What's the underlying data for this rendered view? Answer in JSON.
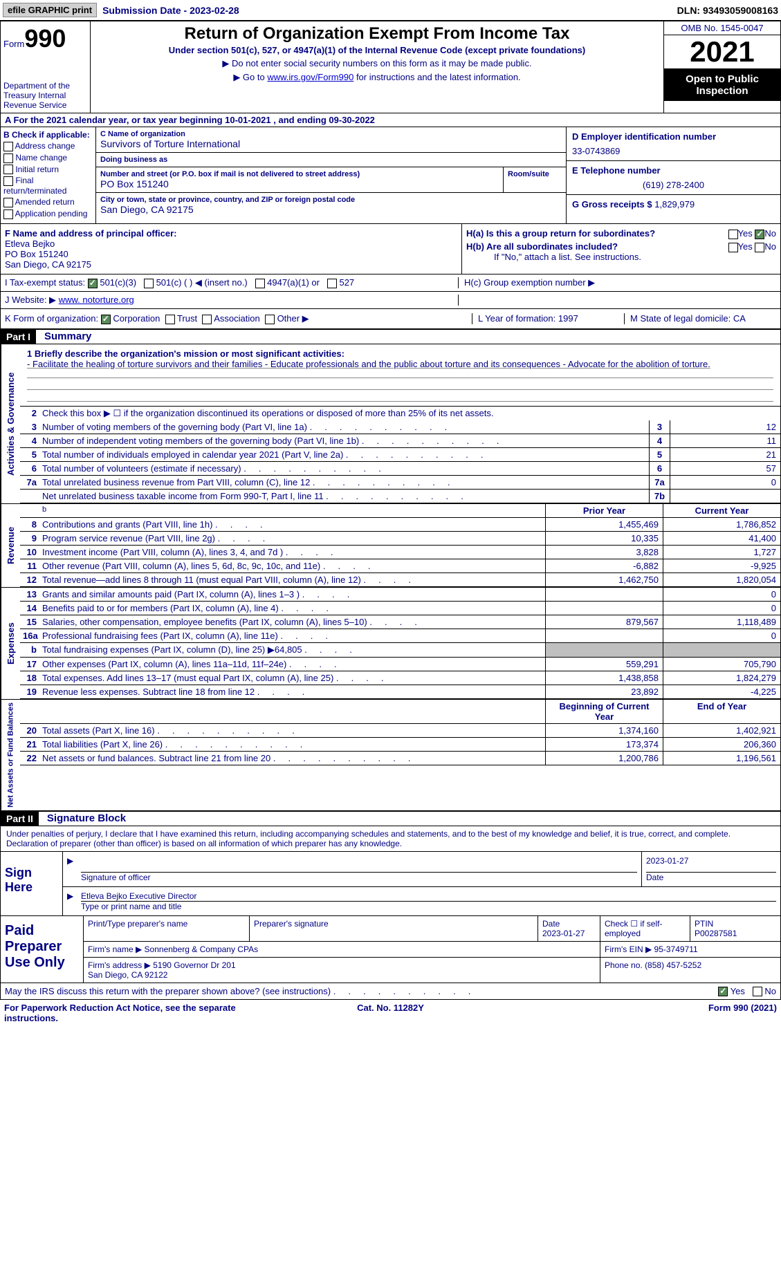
{
  "topbar": {
    "efile_btn": "efile GRAPHIC print",
    "submission_label": "Submission Date - 2023-02-28",
    "dln": "DLN: 93493059008163"
  },
  "header": {
    "form_label": "Form",
    "form_number": "990",
    "dept": "Department of the Treasury\nInternal Revenue Service",
    "title": "Return of Organization Exempt From Income Tax",
    "subtitle": "Under section 501(c), 527, or 4947(a)(1) of the Internal Revenue Code (except private foundations)",
    "note1": "▶ Do not enter social security numbers on this form as it may be made public.",
    "note2_pre": "▶ Go to ",
    "note2_link": "www.irs.gov/Form990",
    "note2_post": " for instructions and the latest information.",
    "omb": "OMB No. 1545-0047",
    "year": "2021",
    "open": "Open to Public Inspection"
  },
  "row_a": "A For the 2021 calendar year, or tax year beginning 10-01-2021    , and ending 09-30-2022",
  "section_b": {
    "header": "B Check if applicable:",
    "items": [
      "Address change",
      "Name change",
      "Initial return",
      "Final return/terminated",
      "Amended return",
      "Application pending"
    ]
  },
  "section_c": {
    "name_lbl": "C Name of organization",
    "name": "Survivors of Torture International",
    "dba_lbl": "Doing business as",
    "dba": "",
    "street_lbl": "Number and street (or P.O. box if mail is not delivered to street address)",
    "street": "PO Box 151240",
    "suite_lbl": "Room/suite",
    "suite": "",
    "city_lbl": "City or town, state or province, country, and ZIP or foreign postal code",
    "city": "San Diego, CA   92175"
  },
  "section_d": {
    "ein_lbl": "D Employer identification number",
    "ein": "33-0743869",
    "phone_lbl": "E Telephone number",
    "phone": "(619) 278-2400",
    "gross_lbl": "G Gross receipts $",
    "gross": "1,829,979"
  },
  "section_f": {
    "lbl": "F  Name and address of principal officer:",
    "name": "Etleva Bejko",
    "addr1": "PO Box 151240",
    "addr2": "San Diego, CA   92175"
  },
  "section_h": {
    "a_lbl": "H(a)  Is this a group return for subordinates?",
    "b_lbl": "H(b)  Are all subordinates included?",
    "b_note": "If \"No,\" attach a list. See instructions.",
    "c_lbl": "H(c)  Group exemption number ▶"
  },
  "status": {
    "lbl": "I   Tax-exempt status:",
    "opts": [
      "501(c)(3)",
      "501(c) (  ) ◀ (insert no.)",
      "4947(a)(1) or",
      "527"
    ]
  },
  "website": {
    "lbl": "J  Website: ▶",
    "val": "www. notorture.org"
  },
  "k": {
    "lbl": "K Form of organization:",
    "opts": [
      "Corporation",
      "Trust",
      "Association",
      "Other ▶"
    ]
  },
  "l": {
    "lbl": "L Year of formation:",
    "val": "1997"
  },
  "m": {
    "lbl": "M State of legal domicile:",
    "val": "CA"
  },
  "part1": {
    "header": "Part I",
    "title": "Summary",
    "mission_lbl": "1   Briefly describe the organization's mission or most significant activities:",
    "mission": "- Facilitate the healing of torture survivors and their families - Educate professionals and the public about torture and its consequences - Advocate for the abolition of torture.",
    "line2": "Check this box ▶ ☐  if the organization discontinued its operations or disposed of more than 25% of its net assets.",
    "activities": [
      {
        "n": "3",
        "d": "Number of voting members of the governing body (Part VI, line 1a)",
        "b": "3",
        "v": "12"
      },
      {
        "n": "4",
        "d": "Number of independent voting members of the governing body (Part VI, line 1b)",
        "b": "4",
        "v": "11"
      },
      {
        "n": "5",
        "d": "Total number of individuals employed in calendar year 2021 (Part V, line 2a)",
        "b": "5",
        "v": "21"
      },
      {
        "n": "6",
        "d": "Total number of volunteers (estimate if necessary)",
        "b": "6",
        "v": "57"
      },
      {
        "n": "7a",
        "d": "Total unrelated business revenue from Part VIII, column (C), line 12",
        "b": "7a",
        "v": "0"
      },
      {
        "n": "",
        "d": "Net unrelated business taxable income from Form 990-T, Part I, line 11",
        "b": "7b",
        "v": ""
      }
    ],
    "col_prior": "Prior Year",
    "col_current": "Current Year",
    "revenue": [
      {
        "n": "8",
        "d": "Contributions and grants (Part VIII, line 1h)",
        "p": "1,455,469",
        "c": "1,786,852"
      },
      {
        "n": "9",
        "d": "Program service revenue (Part VIII, line 2g)",
        "p": "10,335",
        "c": "41,400"
      },
      {
        "n": "10",
        "d": "Investment income (Part VIII, column (A), lines 3, 4, and 7d )",
        "p": "3,828",
        "c": "1,727"
      },
      {
        "n": "11",
        "d": "Other revenue (Part VIII, column (A), lines 5, 6d, 8c, 9c, 10c, and 11e)",
        "p": "-6,882",
        "c": "-9,925"
      },
      {
        "n": "12",
        "d": "Total revenue—add lines 8 through 11 (must equal Part VIII, column (A), line 12)",
        "p": "1,462,750",
        "c": "1,820,054"
      }
    ],
    "expenses": [
      {
        "n": "13",
        "d": "Grants and similar amounts paid (Part IX, column (A), lines 1–3 )",
        "p": "",
        "c": "0"
      },
      {
        "n": "14",
        "d": "Benefits paid to or for members (Part IX, column (A), line 4)",
        "p": "",
        "c": "0"
      },
      {
        "n": "15",
        "d": "Salaries, other compensation, employee benefits (Part IX, column (A), lines 5–10)",
        "p": "879,567",
        "c": "1,118,489"
      },
      {
        "n": "16a",
        "d": "Professional fundraising fees (Part IX, column (A), line 11e)",
        "p": "",
        "c": "0"
      },
      {
        "n": "b",
        "d": "Total fundraising expenses (Part IX, column (D), line 25) ▶64,805",
        "p": "shaded",
        "c": "shaded"
      },
      {
        "n": "17",
        "d": "Other expenses (Part IX, column (A), lines 11a–11d, 11f–24e)",
        "p": "559,291",
        "c": "705,790"
      },
      {
        "n": "18",
        "d": "Total expenses. Add lines 13–17 (must equal Part IX, column (A), line 25)",
        "p": "1,438,858",
        "c": "1,824,279"
      },
      {
        "n": "19",
        "d": "Revenue less expenses. Subtract line 18 from line 12",
        "p": "23,892",
        "c": "-4,225"
      }
    ],
    "col_begin": "Beginning of Current Year",
    "col_end": "End of Year",
    "netassets": [
      {
        "n": "20",
        "d": "Total assets (Part X, line 16)",
        "p": "1,374,160",
        "c": "1,402,921"
      },
      {
        "n": "21",
        "d": "Total liabilities (Part X, line 26)",
        "p": "173,374",
        "c": "206,360"
      },
      {
        "n": "22",
        "d": "Net assets or fund balances. Subtract line 21 from line 20",
        "p": "1,200,786",
        "c": "1,196,561"
      }
    ]
  },
  "part2": {
    "header": "Part II",
    "title": "Signature Block",
    "declaration": "Under penalties of perjury, I declare that I have examined this return, including accompanying schedules and statements, and to the best of my knowledge and belief, it is true, correct, and complete. Declaration of preparer (other than officer) is based on all information of which preparer has any knowledge.",
    "sign_here": "Sign Here",
    "sig_officer": "Signature of officer",
    "sig_date": "2023-01-27",
    "date_lbl": "Date",
    "officer_name": "Etleva Bejko  Executive Director",
    "type_name_lbl": "Type or print name and title",
    "paid_lbl": "Paid Preparer Use Only",
    "prep_name_lbl": "Print/Type preparer's name",
    "prep_sig_lbl": "Preparer's signature",
    "prep_date_lbl": "Date",
    "prep_date": "2023-01-27",
    "check_self": "Check ☐ if self-employed",
    "ptin_lbl": "PTIN",
    "ptin": "P00287581",
    "firm_name_lbl": "Firm's name     ▶",
    "firm_name": "Sonnenberg & Company CPAs",
    "firm_ein_lbl": "Firm's EIN ▶",
    "firm_ein": "95-3749711",
    "firm_addr_lbl": "Firm's address ▶",
    "firm_addr": "5190     Governor Dr 201\nSan Diego, CA   92122",
    "firm_phone_lbl": "Phone no.",
    "firm_phone": "(858) 457-5252"
  },
  "footer": {
    "discuss": "May the IRS discuss this return with the preparer shown above? (see instructions)",
    "yes": "Yes",
    "no": "No",
    "paperwork": "For Paperwork Reduction Act Notice, see the separate instructions.",
    "cat": "Cat. No. 11282Y",
    "form": "Form 990 (2021)"
  },
  "side_labels": {
    "activities": "Activities & Governance",
    "revenue": "Revenue",
    "expenses": "Expenses",
    "netassets": "Net Assets or Fund Balances"
  }
}
